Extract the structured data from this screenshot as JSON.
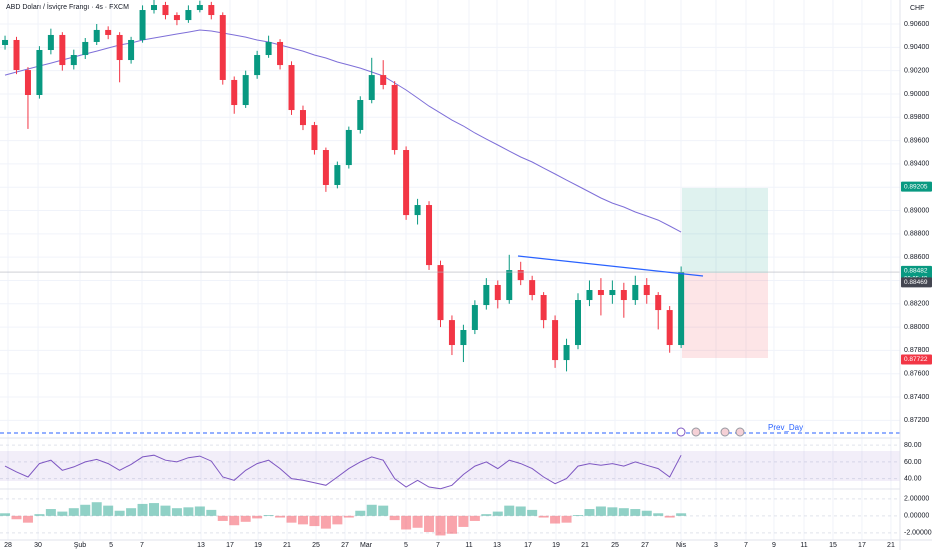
{
  "chart_data": [
    {
      "type": "candlestick",
      "title": "ABD Doları / İsviçre Frangı · 4s · FXCM",
      "currency": "CHF",
      "up_color": "#089981",
      "down_color": "#f23645",
      "open": [
        0.9042,
        0.90463,
        0.90205,
        0.89991,
        0.90377,
        0.90506,
        0.90248,
        0.90334,
        0.90446,
        0.90549,
        0.90506,
        0.90291,
        0.90463,
        0.9072,
        0.90763,
        0.90677,
        0.90634,
        0.9072,
        0.90763,
        0.90677,
        0.9012,
        0.89905,
        0.90162,
        0.90334,
        0.90446,
        0.90248,
        0.89862,
        0.89733,
        0.89519,
        0.89219,
        0.8939,
        0.89691,
        0.89948,
        0.90162,
        0.90077,
        0.89519,
        0.88961,
        0.89047,
        0.88532,
        0.8806,
        0.87846,
        0.87975,
        0.88189,
        0.88361,
        0.88232,
        0.88489,
        0.88403,
        0.88275,
        0.8806,
        0.87717,
        0.87846,
        0.88232,
        0.88318,
        0.88275,
        0.88318,
        0.88232,
        0.88361,
        0.88275,
        0.88146,
        0.87846
      ],
      "high": [
        0.905,
        0.9049,
        0.9023,
        0.9041,
        0.9056,
        0.9053,
        0.9038,
        0.9048,
        0.906,
        0.9058,
        0.9053,
        0.9049,
        0.9076,
        0.9081,
        0.9079,
        0.907,
        0.9076,
        0.908,
        0.9079,
        0.907,
        0.9015,
        0.902,
        0.9037,
        0.905,
        0.9047,
        0.9028,
        0.899,
        0.8976,
        0.8954,
        0.8942,
        0.8972,
        0.8998,
        0.9031,
        0.9029,
        0.9011,
        0.8955,
        0.891,
        0.8908,
        0.8857,
        0.881,
        0.8802,
        0.8823,
        0.8842,
        0.884,
        0.8862,
        0.8856,
        0.8844,
        0.883,
        0.881,
        0.879,
        0.8829,
        0.884,
        0.8842,
        0.884,
        0.8838,
        0.8844,
        0.8842,
        0.883,
        0.8818,
        0.8852
      ],
      "low": [
        0.9038,
        0.9017,
        0.897,
        0.8996,
        0.9034,
        0.902,
        0.9021,
        0.903,
        0.9042,
        0.9047,
        0.901,
        0.9026,
        0.9044,
        0.9069,
        0.9064,
        0.9059,
        0.9061,
        0.907,
        0.9064,
        0.9008,
        0.8983,
        0.8988,
        0.9013,
        0.9031,
        0.9021,
        0.8982,
        0.8969,
        0.8948,
        0.8916,
        0.8919,
        0.8936,
        0.8966,
        0.8992,
        0.9004,
        0.8948,
        0.8892,
        0.8888,
        0.8849,
        0.88,
        0.8776,
        0.877,
        0.8794,
        0.8815,
        0.8816,
        0.882,
        0.8836,
        0.8823,
        0.8799,
        0.8765,
        0.8762,
        0.8781,
        0.8818,
        0.881,
        0.882,
        0.8808,
        0.8819,
        0.882,
        0.8798,
        0.8778,
        0.8782
      ],
      "close": [
        0.90463,
        0.90205,
        0.89991,
        0.90377,
        0.90506,
        0.90248,
        0.90334,
        0.90446,
        0.90549,
        0.90506,
        0.90291,
        0.90463,
        0.9072,
        0.90763,
        0.90677,
        0.90634,
        0.9072,
        0.90763,
        0.90677,
        0.9012,
        0.89905,
        0.90162,
        0.90334,
        0.90446,
        0.90248,
        0.89862,
        0.89733,
        0.89519,
        0.89219,
        0.8939,
        0.89691,
        0.89948,
        0.90162,
        0.90077,
        0.89519,
        0.88961,
        0.89047,
        0.88532,
        0.8806,
        0.87846,
        0.87975,
        0.88189,
        0.88361,
        0.88232,
        0.88489,
        0.88403,
        0.88275,
        0.8806,
        0.87717,
        0.87846,
        0.88232,
        0.88318,
        0.88275,
        0.88318,
        0.88232,
        0.88361,
        0.88275,
        0.88146,
        0.87846,
        0.88472
      ],
      "ma": {
        "color": "#7e6fd8",
        "values": [
          0.90162,
          0.90188,
          0.90214,
          0.9024,
          0.90265,
          0.90291,
          0.90317,
          0.90343,
          0.90368,
          0.90394,
          0.9042,
          0.90437,
          0.90463,
          0.9048,
          0.90497,
          0.90514,
          0.90531,
          0.90549,
          0.9054,
          0.90523,
          0.90506,
          0.90488,
          0.90463,
          0.90446,
          0.9042,
          0.90394,
          0.90368,
          0.90334,
          0.90308,
          0.90274,
          0.90248,
          0.90222,
          0.90188,
          0.90154,
          0.90094,
          0.90034,
          0.89965,
          0.89896,
          0.89836,
          0.89776,
          0.89725,
          0.89665,
          0.89613,
          0.89562,
          0.8951,
          0.89459,
          0.89416,
          0.89364,
          0.89313,
          0.89261,
          0.8921,
          0.89159,
          0.89107,
          0.89064,
          0.8903,
          0.88987,
          0.88953,
          0.88918,
          0.88867,
          0.88815
        ]
      },
      "ylim": [
        0.87117,
        0.90806
      ],
      "yticks": [
        {
          "value": 0.906,
          "label": "0.90600"
        },
        {
          "value": 0.904,
          "label": "0.90400"
        },
        {
          "value": 0.902,
          "label": "0.90200"
        },
        {
          "value": 0.9,
          "label": "0.90000"
        },
        {
          "value": 0.898,
          "label": "0.89800"
        },
        {
          "value": 0.896,
          "label": "0.89600"
        },
        {
          "value": 0.894,
          "label": "0.89400"
        },
        {
          "value": 0.892,
          "label": "0.89200"
        },
        {
          "value": 0.89,
          "label": "0.89000"
        },
        {
          "value": 0.888,
          "label": "0.88800"
        },
        {
          "value": 0.886,
          "label": "0.88600"
        },
        {
          "value": 0.884,
          "label": "0.88400"
        },
        {
          "value": 0.882,
          "label": "0.88200"
        },
        {
          "value": 0.88,
          "label": "0.88000"
        },
        {
          "value": 0.878,
          "label": "0.87800"
        },
        {
          "value": 0.876,
          "label": "0.87600"
        },
        {
          "value": 0.874,
          "label": "0.87400"
        },
        {
          "value": 0.872,
          "label": "0.87200"
        }
      ],
      "xlim": [
        -0.44,
        78.1
      ],
      "xticks": [
        {
          "value": 0.26,
          "label": "28"
        },
        {
          "value": 2.88,
          "label": "30"
        },
        {
          "value": 6.54,
          "label": "Şub"
        },
        {
          "value": 9.25,
          "label": "5"
        },
        {
          "value": 11.95,
          "label": "7"
        },
        {
          "value": 17.1,
          "label": "13"
        },
        {
          "value": 19.63,
          "label": "17"
        },
        {
          "value": 22.08,
          "label": "19"
        },
        {
          "value": 24.61,
          "label": "21"
        },
        {
          "value": 27.14,
          "label": "25"
        },
        {
          "value": 29.67,
          "label": "27"
        },
        {
          "value": 31.5,
          "label": "Mar"
        },
        {
          "value": 34.99,
          "label": "5"
        },
        {
          "value": 37.78,
          "label": "7"
        },
        {
          "value": 40.49,
          "label": "11"
        },
        {
          "value": 42.93,
          "label": "13"
        },
        {
          "value": 45.64,
          "label": "17"
        },
        {
          "value": 48.08,
          "label": "19"
        },
        {
          "value": 50.61,
          "label": "21"
        },
        {
          "value": 53.23,
          "label": "25"
        },
        {
          "value": 55.85,
          "label": "27"
        },
        {
          "value": 58.99,
          "label": "Nis"
        },
        {
          "value": 62.04,
          "label": "3"
        },
        {
          "value": 64.66,
          "label": "7"
        },
        {
          "value": 67.1,
          "label": "9"
        },
        {
          "value": 69.72,
          "label": "11"
        },
        {
          "value": 72.25,
          "label": "15"
        },
        {
          "value": 74.78,
          "label": "17"
        },
        {
          "value": 77.31,
          "label": "21"
        }
      ],
      "markers": [
        {
          "value": 0.89205,
          "label": "0.89205",
          "color": "#089981"
        },
        {
          "value": 0.88482,
          "label": "0.88482",
          "color": "#089981"
        },
        {
          "value": 0.88469,
          "label": "0.88469",
          "color": "#434651"
        },
        {
          "value": 0.87722,
          "label": "0.87722",
          "color": "#f23645"
        }
      ],
      "countdown": "00:05:49",
      "annotation": "Prev_Day"
    },
    {
      "type": "line",
      "color": "#7e57c2",
      "values": [
        55,
        48,
        42,
        58,
        62,
        50,
        54,
        60,
        63,
        58,
        50,
        57,
        66,
        68,
        62,
        60,
        65,
        67,
        61,
        42,
        38,
        50,
        58,
        62,
        52,
        40,
        38,
        35,
        32,
        42,
        52,
        60,
        66,
        62,
        40,
        30,
        38,
        30,
        28,
        32,
        45,
        55,
        60,
        52,
        62,
        58,
        52,
        42,
        34,
        40,
        55,
        58,
        56,
        58,
        55,
        60,
        56,
        52,
        42,
        68
      ],
      "ylim": [
        30,
        85
      ],
      "yticks": [
        {
          "value": 80,
          "label": "80.00"
        },
        {
          "value": 60,
          "label": "60.00"
        },
        {
          "value": 40,
          "label": "40.00"
        }
      ]
    },
    {
      "type": "bar",
      "up_color": "#089981",
      "down_color": "#f23645",
      "values": [
        0.3,
        -0.4,
        -0.8,
        0.2,
        0.8,
        0.5,
        0.9,
        1.3,
        1.6,
        1.2,
        0.6,
        0.9,
        1.4,
        1.5,
        1.2,
        0.9,
        1.0,
        1.1,
        0.7,
        -0.6,
        -1.1,
        -0.7,
        -0.3,
        0.1,
        -0.2,
        -0.8,
        -1.0,
        -1.2,
        -1.5,
        -1.0,
        -0.2,
        0.6,
        1.3,
        1.2,
        -0.5,
        -1.6,
        -1.4,
        -1.9,
        -2.3,
        -2.1,
        -1.3,
        -0.6,
        0.2,
        0.5,
        1.2,
        1.1,
        0.7,
        -0.2,
        -0.9,
        -0.8,
        0.1,
        0.8,
        1.1,
        1.0,
        0.9,
        0.8,
        0.6,
        0.3,
        -0.2,
        0.3
      ],
      "ylim": [
        -2.6,
        2.8
      ],
      "yticks": [
        {
          "value": 2,
          "label": "2.00000"
        },
        {
          "value": 0,
          "label": "0.00000"
        },
        {
          "value": -2,
          "label": "-2.00000"
        }
      ]
    }
  ]
}
